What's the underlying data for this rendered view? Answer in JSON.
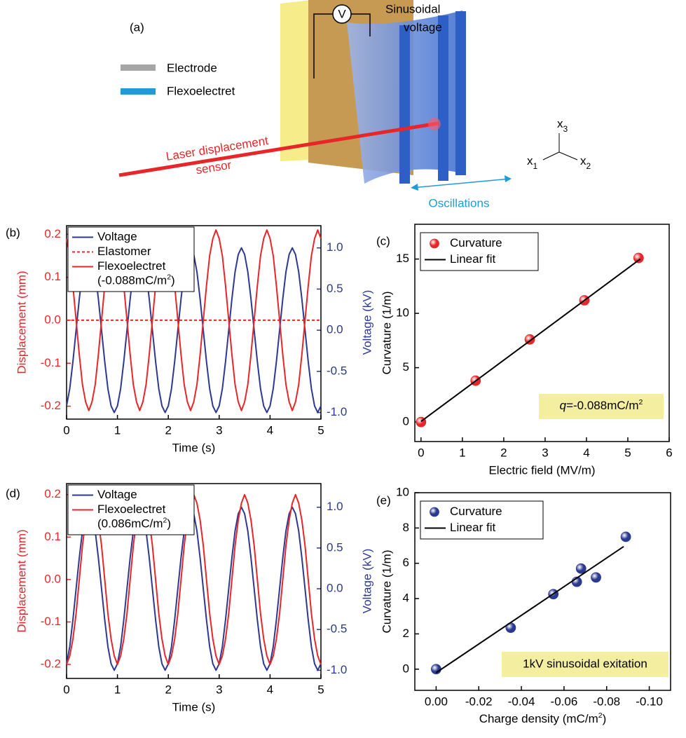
{
  "diagram": {
    "label": "(a)",
    "voltmeter": "V",
    "voltage_label": [
      "Sinusoidal",
      "voltage"
    ],
    "legend": [
      "Electrode",
      "Flexoelectret"
    ],
    "laser_label": [
      "Laser displacement",
      "sensor"
    ],
    "motion_label": "Oscillations",
    "axes": [
      {
        "symbol": "x",
        "index": "3"
      },
      {
        "symbol": "x",
        "index": "1"
      },
      {
        "symbol": "x",
        "index": "2"
      }
    ]
  },
  "chart_data": [
    {
      "type": "line",
      "panel_label": "(b)",
      "xlabel": "Time (s)",
      "ylabel": "Displacement (mm)",
      "y2label": "Voltage (kV)",
      "legend": "upper left",
      "legend_note": {
        "text": "(-0.088mC/m",
        "superscript": "2",
        "close": ")"
      },
      "xlim": [
        0,
        5
      ],
      "xticks": [
        0,
        1,
        2,
        3,
        4,
        5
      ],
      "ylim": [
        -0.23,
        0.22
      ],
      "yticks": [
        -0.2,
        -0.1,
        {
          "value": 0,
          "label": "0.0"
        },
        0.1,
        0.2
      ],
      "y2lim": [
        -1.08,
        1.27
      ],
      "y2ticks": [
        {
          "value": -1,
          "label": "-1.0"
        },
        -0.5,
        {
          "value": 0,
          "label": "0.0"
        },
        0.5,
        {
          "value": 1,
          "label": "1.0"
        }
      ],
      "x": [
        0,
        0.0625,
        0.125,
        0.1875,
        0.25,
        0.3125,
        0.375,
        0.4375,
        0.5,
        0.5625,
        0.625,
        0.6875,
        0.75,
        0.8125,
        0.875,
        0.9375,
        1,
        1.0625,
        1.125,
        1.1875,
        1.25,
        1.3125,
        1.375,
        1.4375,
        1.5,
        1.5625,
        1.625,
        1.6875,
        1.75,
        1.8125,
        1.875,
        1.9375,
        2,
        2.0625,
        2.125,
        2.1875,
        2.25,
        2.3125,
        2.375,
        2.4375,
        2.5,
        2.5625,
        2.625,
        2.6875,
        2.75,
        2.8125,
        2.875,
        2.9375,
        3,
        3.0625,
        3.125,
        3.1875,
        3.25,
        3.3125,
        3.375,
        3.4375,
        3.5,
        3.5625,
        3.625,
        3.6875,
        3.75,
        3.8125,
        3.875,
        3.9375,
        4,
        4.0625,
        4.125,
        4.1875,
        4.25,
        4.3125,
        4.375,
        4.4375,
        4.5,
        4.5625,
        4.625,
        4.6875,
        4.75,
        4.8125,
        4.875,
        4.9375,
        5
      ],
      "series": [
        {
          "name": "Voltage",
          "color": "#2b3990",
          "axis": "y2",
          "values": [
            -0.92,
            -0.71,
            -0.38,
            0,
            0.38,
            0.71,
            0.92,
            1,
            0.92,
            0.71,
            0.38,
            0,
            -0.38,
            -0.71,
            -0.92,
            -1,
            -0.92,
            -0.71,
            -0.38,
            0,
            0.38,
            0.71,
            0.92,
            1,
            0.92,
            0.71,
            0.38,
            0,
            -0.38,
            -0.71,
            -0.92,
            -1,
            -0.92,
            -0.71,
            -0.38,
            0,
            0.38,
            0.71,
            0.92,
            1,
            0.92,
            0.71,
            0.38,
            0,
            -0.38,
            -0.71,
            -0.92,
            -1,
            -0.92,
            -0.71,
            -0.38,
            0,
            0.38,
            0.71,
            0.92,
            1,
            0.92,
            0.71,
            0.38,
            0,
            -0.38,
            -0.71,
            -0.92,
            -1,
            -0.92,
            -0.71,
            -0.38,
            0,
            0.38,
            0.71,
            0.92,
            1,
            0.92,
            0.71,
            0.38,
            0,
            -0.38,
            -0.71,
            -0.92,
            -1,
            -0.92
          ]
        },
        {
          "name": "Elastomer",
          "color": "#e8262a",
          "line_style": "dashed",
          "x": [
            0,
            5
          ],
          "values": [
            0,
            0
          ]
        },
        {
          "name": "Flexoelectret",
          "color": "#e8262a",
          "values": [
            0.19,
            0.15,
            0.08,
            0,
            -0.08,
            -0.15,
            -0.19,
            -0.21,
            -0.19,
            -0.15,
            -0.08,
            0,
            0.08,
            0.15,
            0.19,
            0.21,
            0.19,
            0.15,
            0.08,
            0,
            -0.08,
            -0.15,
            -0.19,
            -0.21,
            -0.19,
            -0.15,
            -0.08,
            0,
            0.08,
            0.15,
            0.19,
            0.21,
            0.19,
            0.15,
            0.08,
            0,
            -0.08,
            -0.15,
            -0.19,
            -0.21,
            -0.19,
            -0.15,
            -0.08,
            0,
            0.08,
            0.15,
            0.19,
            0.21,
            0.19,
            0.15,
            0.08,
            0,
            -0.08,
            -0.15,
            -0.19,
            -0.21,
            -0.19,
            -0.15,
            -0.08,
            0,
            0.08,
            0.15,
            0.19,
            0.21,
            0.19,
            0.15,
            0.08,
            0,
            -0.08,
            -0.15,
            -0.19,
            -0.21,
            -0.19,
            -0.15,
            -0.08,
            0,
            0.08,
            0.15,
            0.19,
            0.21,
            0.19
          ]
        }
      ]
    },
    {
      "type": "scatter",
      "panel_label": "(c)",
      "xlabel": "Electric field (MV/m)",
      "ylabel": "Curvature (1/m)",
      "legend": "upper left",
      "annotation": {
        "symbol": "q",
        "text": "=-0.088mC/m",
        "superscript": "2"
      },
      "xlim": [
        -0.15,
        6
      ],
      "xticks": [
        0,
        1,
        2,
        3,
        4,
        5,
        6
      ],
      "ylim": [
        -1.8,
        18.2
      ],
      "yticks": [
        0,
        5,
        10,
        15
      ],
      "series": [
        {
          "name": "Curvature",
          "color": "#e8262a",
          "kind": "points",
          "x": [
            0,
            1.32,
            2.63,
            3.95,
            5.26
          ],
          "values": [
            0,
            3.8,
            7.6,
            11.2,
            15.1
          ]
        },
        {
          "name": "Linear fit",
          "color": "#000000",
          "kind": "line",
          "x": [
            0,
            5.3
          ],
          "values": [
            0.05,
            15.0
          ]
        }
      ]
    },
    {
      "type": "line",
      "panel_label": "(d)",
      "xlabel": "Time (s)",
      "ylabel": "Displacement (mm)",
      "y2label": "Voltage (kV)",
      "legend": "upper left",
      "legend_note": {
        "text": "(0.086mC/m",
        "superscript": "2",
        "close": ")"
      },
      "xlim": [
        0,
        5
      ],
      "xticks": [
        0,
        1,
        2,
        3,
        4,
        5
      ],
      "ylim": [
        -0.233,
        0.226
      ],
      "yticks": [
        -0.2,
        -0.1,
        {
          "value": 0,
          "label": "0.0"
        },
        0.1,
        0.2
      ],
      "y2lim": [
        -1.1,
        1.29
      ],
      "y2ticks": [
        {
          "value": -1,
          "label": "-1.0"
        },
        -0.5,
        {
          "value": 0,
          "label": "0.0"
        },
        0.5,
        {
          "value": 1,
          "label": "1.0"
        }
      ],
      "x": [
        0,
        0.0625,
        0.125,
        0.1875,
        0.25,
        0.3125,
        0.375,
        0.4375,
        0.5,
        0.5625,
        0.625,
        0.6875,
        0.75,
        0.8125,
        0.875,
        0.9375,
        1,
        1.0625,
        1.125,
        1.1875,
        1.25,
        1.3125,
        1.375,
        1.4375,
        1.5,
        1.5625,
        1.625,
        1.6875,
        1.75,
        1.8125,
        1.875,
        1.9375,
        2,
        2.0625,
        2.125,
        2.1875,
        2.25,
        2.3125,
        2.375,
        2.4375,
        2.5,
        2.5625,
        2.625,
        2.6875,
        2.75,
        2.8125,
        2.875,
        2.9375,
        3,
        3.0625,
        3.125,
        3.1875,
        3.25,
        3.3125,
        3.375,
        3.4375,
        3.5,
        3.5625,
        3.625,
        3.6875,
        3.75,
        3.8125,
        3.875,
        3.9375,
        4,
        4.0625,
        4.125,
        4.1875,
        4.25,
        4.3125,
        4.375,
        4.4375,
        4.5,
        4.5625,
        4.625,
        4.6875,
        4.75,
        4.8125,
        4.875,
        4.9375,
        5
      ],
      "series": [
        {
          "name": "Voltage",
          "color": "#2b3990",
          "axis": "y2",
          "values": [
            -0.92,
            -0.71,
            -0.38,
            0,
            0.38,
            0.71,
            0.92,
            1,
            0.92,
            0.71,
            0.38,
            0,
            -0.38,
            -0.71,
            -0.92,
            -1,
            -0.92,
            -0.71,
            -0.38,
            0,
            0.38,
            0.71,
            0.92,
            1,
            0.92,
            0.71,
            0.38,
            0,
            -0.38,
            -0.71,
            -0.92,
            -1,
            -0.92,
            -0.71,
            -0.38,
            0,
            0.38,
            0.71,
            0.92,
            1,
            0.92,
            0.71,
            0.38,
            0,
            -0.38,
            -0.71,
            -0.92,
            -1,
            -0.92,
            -0.71,
            -0.38,
            0,
            0.38,
            0.71,
            0.92,
            1,
            0.92,
            0.71,
            0.38,
            0,
            -0.38,
            -0.71,
            -0.92,
            -1,
            -0.92,
            -0.71,
            -0.38,
            0,
            0.38,
            0.71,
            0.92,
            1,
            0.92,
            0.71,
            0.38,
            0,
            -0.38,
            -0.71,
            -0.92,
            -1,
            -0.92
          ]
        },
        {
          "name": "Flexoelectret",
          "color": "#e8262a",
          "values": [
            -0.2,
            -0.18,
            -0.14,
            -0.08,
            0,
            0.08,
            0.14,
            0.18,
            0.2,
            0.18,
            0.14,
            0.08,
            0,
            -0.08,
            -0.14,
            -0.18,
            -0.2,
            -0.18,
            -0.14,
            -0.08,
            0,
            0.08,
            0.14,
            0.18,
            0.2,
            0.18,
            0.14,
            0.08,
            0,
            -0.08,
            -0.14,
            -0.18,
            -0.2,
            -0.18,
            -0.14,
            -0.08,
            0,
            0.08,
            0.14,
            0.18,
            0.2,
            0.18,
            0.14,
            0.08,
            0,
            -0.08,
            -0.14,
            -0.18,
            -0.2,
            -0.18,
            -0.14,
            -0.08,
            0,
            0.08,
            0.14,
            0.18,
            0.2,
            0.18,
            0.14,
            0.08,
            0,
            -0.08,
            -0.14,
            -0.18,
            -0.2,
            -0.18,
            -0.14,
            -0.08,
            0,
            0.08,
            0.14,
            0.18,
            0.2,
            0.18,
            0.14,
            0.08,
            0,
            -0.08,
            -0.14,
            -0.18,
            -0.2
          ]
        }
      ]
    },
    {
      "type": "scatter",
      "panel_label": "(e)",
      "xlabel": {
        "text": "Charge density (mC/m",
        "superscript": "2",
        "close": ")"
      },
      "ylabel": "Curvature (1/m)",
      "legend": "upper left",
      "annotation": "1kV sinusoidal exitation",
      "xlim": [
        0.01,
        -0.11
      ],
      "xticks": [
        {
          "value": 0,
          "label": "0.00"
        },
        {
          "value": -0.02,
          "label": "-0.02"
        },
        {
          "value": -0.04,
          "label": "-0.04"
        },
        {
          "value": -0.06,
          "label": "-0.06"
        },
        {
          "value": -0.08,
          "label": "-0.08"
        },
        {
          "value": -0.1,
          "label": "-0.10"
        }
      ],
      "ylim": [
        -1.2,
        10
      ],
      "yticks": [
        0,
        2,
        4,
        6,
        8,
        10
      ],
      "series": [
        {
          "name": "Curvature",
          "color": "#2b3990",
          "kind": "points",
          "x": [
            0,
            -0.035,
            -0.055,
            -0.066,
            -0.068,
            -0.075,
            -0.089
          ],
          "values": [
            0,
            2.35,
            4.25,
            4.95,
            5.7,
            5.2,
            7.5
          ]
        },
        {
          "name": "Linear fit",
          "color": "#000000",
          "kind": "line",
          "x": [
            0,
            -0.088
          ],
          "values": [
            -0.2,
            6.95
          ]
        }
      ]
    }
  ]
}
